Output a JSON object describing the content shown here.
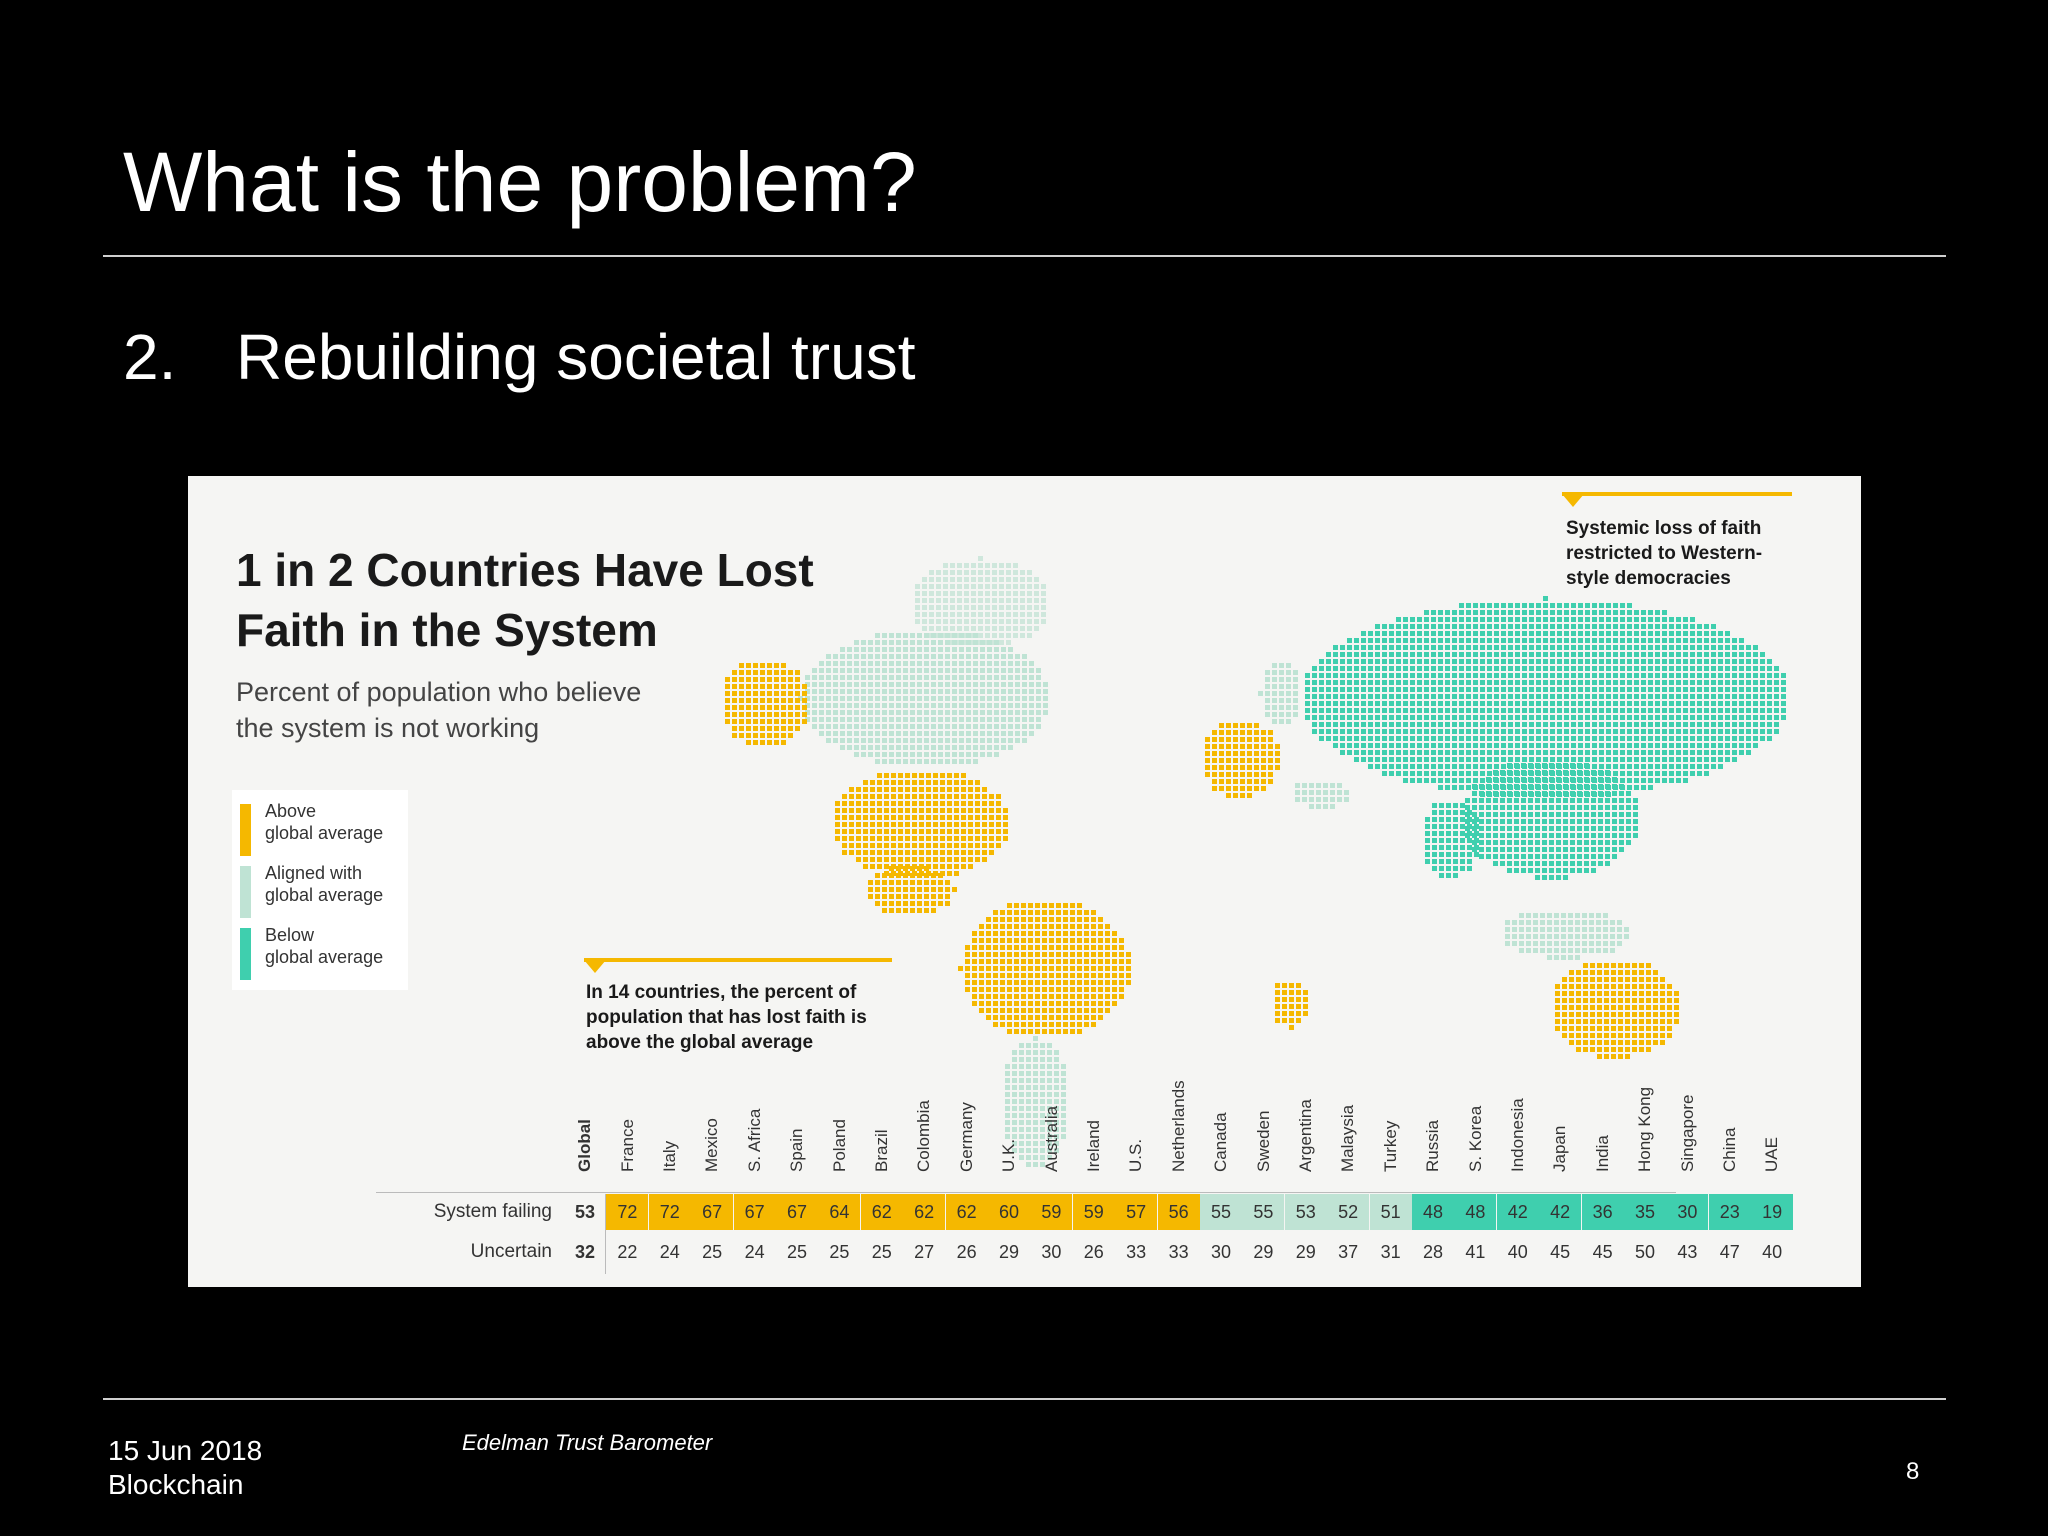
{
  "slide": {
    "title": "What is the problem?",
    "subtitle_number": "2.",
    "subtitle_text": "Rebuilding societal trust"
  },
  "infographic": {
    "title_line1": "1 in 2 Countries Have Lost",
    "title_line2": "Faith in the System",
    "subtitle_line1": "Percent of population who believe",
    "subtitle_line2": "the system is not working",
    "legend": [
      {
        "line1": "Above",
        "line2": "global average",
        "color": "#f5b800"
      },
      {
        "line1": "Aligned with",
        "line2": "global average",
        "color": "#bfe3d4"
      },
      {
        "line1": "Below",
        "line2": "global average",
        "color": "#3fcfae"
      }
    ],
    "callout_top": [
      "Systemic loss of faith",
      "restricted to Western-",
      "style democracies"
    ],
    "callout_bottom": [
      "In 14 countries, the percent of",
      "population that has lost faith is",
      "above the global average"
    ],
    "colors": {
      "above": "#f5b800",
      "aligned": "#bfe3d4",
      "below": "#3fcfae",
      "background": "#f5f5f3"
    }
  },
  "chart_data": {
    "type": "table",
    "columns": [
      "Global",
      "France",
      "Italy",
      "Mexico",
      "S. Africa",
      "Spain",
      "Poland",
      "Brazil",
      "Colombia",
      "Germany",
      "U.K.",
      "Australia",
      "Ireland",
      "U.S.",
      "Netherlands",
      "Canada",
      "Sweden",
      "Argentina",
      "Malaysia",
      "Turkey",
      "Russia",
      "S. Korea",
      "Indonesia",
      "Japan",
      "India",
      "Hong Kong",
      "Singapore",
      "China",
      "UAE"
    ],
    "rows": [
      {
        "label": "System failing",
        "values": [
          53,
          72,
          72,
          67,
          67,
          67,
          64,
          62,
          62,
          62,
          60,
          59,
          59,
          57,
          56,
          55,
          55,
          53,
          52,
          51,
          48,
          48,
          42,
          42,
          36,
          35,
          30,
          23,
          19
        ]
      },
      {
        "label": "Uncertain",
        "values": [
          32,
          22,
          24,
          25,
          24,
          25,
          25,
          25,
          27,
          26,
          29,
          30,
          26,
          33,
          33,
          30,
          29,
          29,
          37,
          31,
          28,
          41,
          40,
          45,
          45,
          50,
          43,
          47,
          40
        ]
      }
    ],
    "categories": [
      "global",
      "above",
      "above",
      "above",
      "above",
      "above",
      "above",
      "above",
      "above",
      "above",
      "above",
      "above",
      "above",
      "above",
      "above",
      "aligned",
      "aligned",
      "aligned",
      "aligned",
      "aligned",
      "below",
      "below",
      "below",
      "below",
      "below",
      "below",
      "below",
      "below",
      "below"
    ]
  },
  "footer": {
    "date": "15 Jun 2018",
    "topic": "Blockchain",
    "source": "Edelman Trust Barometer",
    "page": "8"
  }
}
